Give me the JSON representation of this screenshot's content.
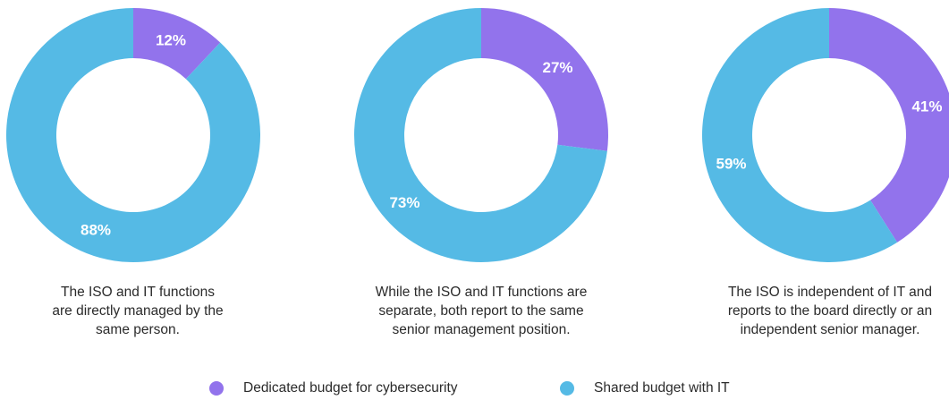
{
  "colors": {
    "dedicated": "#9273EC",
    "shared": "#55BAE5",
    "label_text": "#ffffff",
    "caption_text": "#2b2b2b"
  },
  "legend": [
    {
      "label": "Dedicated budget for cybersecurity",
      "color": "#9273EC"
    },
    {
      "label": "Shared budget with IT",
      "color": "#55BAE5"
    }
  ],
  "chart_data": [
    {
      "type": "pie",
      "donut": true,
      "categories": [
        "Dedicated budget for cybersecurity",
        "Shared budget with IT"
      ],
      "values": [
        12,
        88
      ],
      "labels": [
        "12%",
        "88%"
      ],
      "caption": "The ISO and IT functions\nare directly managed by the\nsame person."
    },
    {
      "type": "pie",
      "donut": true,
      "categories": [
        "Dedicated budget for cybersecurity",
        "Shared budget with IT"
      ],
      "values": [
        27,
        73
      ],
      "labels": [
        "27%",
        "73%"
      ],
      "caption": "While the ISO and IT functions are\nseparate, both report to the same\nsenior management position."
    },
    {
      "type": "pie",
      "donut": true,
      "categories": [
        "Dedicated budget for cybersecurity",
        "Shared budget with IT"
      ],
      "values": [
        41,
        59
      ],
      "labels": [
        "41%",
        "59%"
      ],
      "caption": "The ISO is independent of IT and\nreports to the board directly or an\nindependent senior manager."
    }
  ]
}
